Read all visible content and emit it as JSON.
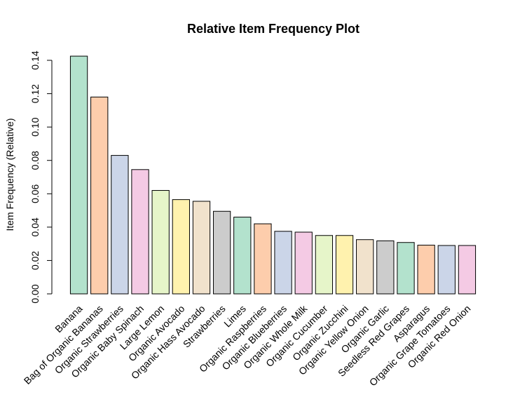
{
  "chart_data": {
    "type": "bar",
    "title": "Relative Item Frequency Plot",
    "xlabel": "",
    "ylabel": "Item Frequency (Relative)",
    "ylim": [
      0,
      0.14
    ],
    "yticks": [
      "0.00",
      "0.02",
      "0.04",
      "0.06",
      "0.08",
      "0.10",
      "0.12",
      "0.14"
    ],
    "grid": false,
    "categories": [
      "Banana",
      "Bag of Organic Bananas",
      "Organic Strawberries",
      "Organic Baby Spinach",
      "Large Lemon",
      "Organic Avocado",
      "Organic Hass Avocado",
      "Strawberries",
      "Limes",
      "Organic Raspberries",
      "Organic Blueberries",
      "Organic Whole Milk",
      "Organic Cucumber",
      "Organic Zucchini",
      "Organic Yellow Onion",
      "Organic Garlic",
      "Seedless Red Grapes",
      "Asparagus",
      "Organic Grape Tomatoes",
      "Organic Red Onion"
    ],
    "values": [
      0.1425,
      0.118,
      0.083,
      0.0745,
      0.062,
      0.0565,
      0.0555,
      0.0495,
      0.046,
      0.042,
      0.0375,
      0.037,
      0.035,
      0.035,
      0.0325,
      0.0318,
      0.0308,
      0.0292,
      0.029,
      0.029
    ],
    "colors": [
      "#B3E2CD",
      "#FDCDAC",
      "#CBD5E8",
      "#F4CAE4",
      "#E6F5C9",
      "#FFF2AE",
      "#F1E2CC",
      "#CCCCCC"
    ]
  }
}
